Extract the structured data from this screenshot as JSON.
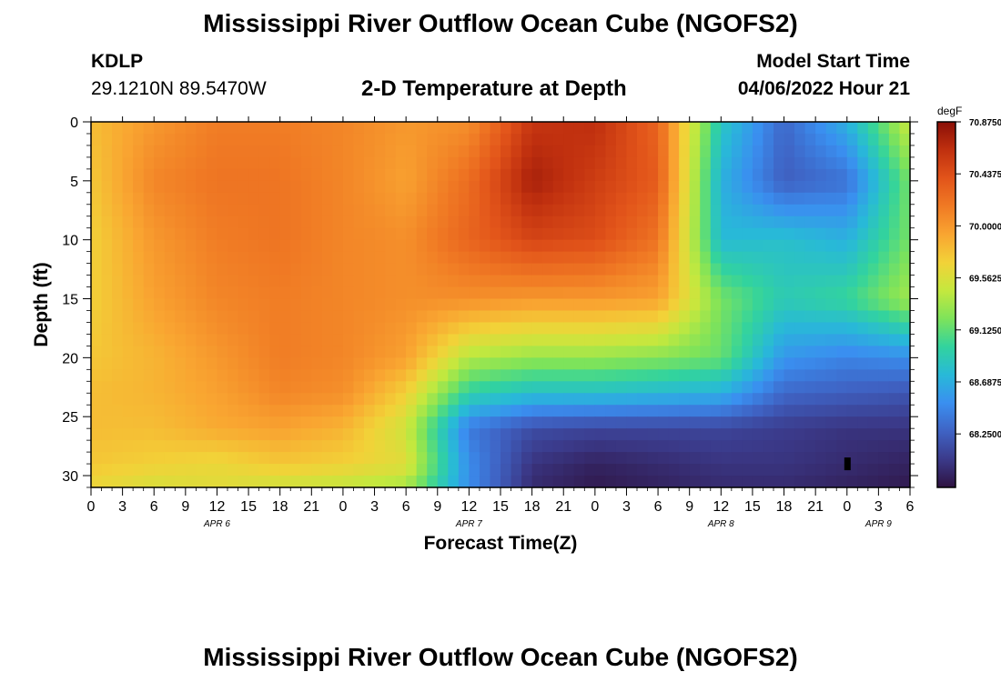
{
  "header": {
    "title": "Mississippi River Outflow Ocean Cube (NGOFS2)",
    "station_id": "KDLP",
    "station_coords": "29.1210N  89.5470W",
    "subtitle": "2-D Temperature at Depth",
    "model_start_label": "Model Start Time",
    "model_start_value": "04/06/2022 Hour 21"
  },
  "footer": {
    "title": "Mississippi River Outflow Ocean Cube (NGOFS2)"
  },
  "colors": {
    "colormap": [
      "#2e1240",
      "#3b3a8a",
      "#3f63c4",
      "#3a8ff0",
      "#28b9d8",
      "#32d39e",
      "#7ee35a",
      "#c4e83e",
      "#f2d238",
      "#f9a531",
      "#f07a24",
      "#e2541a",
      "#c0300f",
      "#8a0f07"
    ]
  },
  "chart_data": {
    "type": "heatmap",
    "xlabel": "Forecast Time(Z)",
    "ylabel": "Depth (ft)",
    "x_ticks": [
      "0",
      "3",
      "6",
      "9",
      "12",
      "15",
      "18",
      "21",
      "0",
      "3",
      "6",
      "9",
      "12",
      "15",
      "18",
      "21",
      "0",
      "3",
      "6",
      "9",
      "12",
      "15",
      "18",
      "21",
      "0",
      "3",
      "6"
    ],
    "date_labels": [
      {
        "label": "APR 6",
        "at_tick": 4
      },
      {
        "label": "APR 7",
        "at_tick": 12
      },
      {
        "label": "APR 8",
        "at_tick": 20
      },
      {
        "label": "APR 9",
        "at_tick": 25
      }
    ],
    "y_ticks": [
      0,
      5,
      10,
      15,
      20,
      25,
      30
    ],
    "ylim": [
      0,
      31
    ],
    "x_range_hours": [
      0,
      78
    ],
    "colorbar": {
      "unit": "degF",
      "tick_labels": [
        "70.8750",
        "70.4375",
        "70.0000",
        "69.5625",
        "69.1250",
        "68.6875",
        "68.2500"
      ],
      "range": [
        67.8,
        70.875
      ]
    },
    "value_model": {
      "layers": [
        {
          "depth": 0,
          "hours": [
            0,
            6,
            12,
            18,
            24,
            30,
            36,
            42,
            48,
            54,
            60,
            66,
            72,
            78
          ],
          "values": [
            69.8,
            70.0,
            70.15,
            70.15,
            70.1,
            70.0,
            70.05,
            70.6,
            70.65,
            70.3,
            68.85,
            68.3,
            68.7,
            69.5
          ]
        },
        {
          "depth": 5,
          "hours": [
            0,
            6,
            12,
            18,
            24,
            30,
            36,
            42,
            48,
            54,
            60,
            66,
            72,
            78
          ],
          "values": [
            69.75,
            70.1,
            70.2,
            70.2,
            70.1,
            69.95,
            70.25,
            70.75,
            70.55,
            70.35,
            68.7,
            68.25,
            68.35,
            69.2
          ]
        },
        {
          "depth": 10,
          "hours": [
            0,
            6,
            12,
            18,
            24,
            30,
            36,
            42,
            48,
            54,
            60,
            66,
            72,
            78
          ],
          "values": [
            69.7,
            70.0,
            70.15,
            70.2,
            70.1,
            70.05,
            70.3,
            70.5,
            70.45,
            70.2,
            68.75,
            68.8,
            68.7,
            69.2
          ]
        },
        {
          "depth": 15,
          "hours": [
            0,
            6,
            12,
            18,
            24,
            30,
            36,
            42,
            48,
            54,
            60,
            66,
            72,
            78
          ],
          "values": [
            69.7,
            69.95,
            70.1,
            70.15,
            70.1,
            70.05,
            70.05,
            70.0,
            70.0,
            69.95,
            69.2,
            68.9,
            69.0,
            69.35
          ]
        },
        {
          "depth": 20,
          "hours": [
            0,
            6,
            12,
            18,
            24,
            30,
            36,
            42,
            48,
            54,
            60,
            66,
            72,
            78
          ],
          "values": [
            69.75,
            69.85,
            70.0,
            70.15,
            70.1,
            69.95,
            69.4,
            69.3,
            69.3,
            69.25,
            69.15,
            68.55,
            68.45,
            68.5
          ]
        },
        {
          "depth": 23,
          "hours": [
            0,
            6,
            12,
            18,
            24,
            30,
            36,
            42,
            48,
            54,
            60,
            66,
            72,
            78
          ],
          "values": [
            69.8,
            69.85,
            69.95,
            70.1,
            70.05,
            69.7,
            68.95,
            68.8,
            68.8,
            68.75,
            68.7,
            68.3,
            68.25,
            68.2
          ]
        },
        {
          "depth": 26,
          "hours": [
            0,
            6,
            12,
            18,
            24,
            30,
            36,
            42,
            48,
            54,
            60,
            66,
            72,
            78
          ],
          "values": [
            69.8,
            69.8,
            69.9,
            69.95,
            69.85,
            69.5,
            68.4,
            68.15,
            68.1,
            68.1,
            68.1,
            68.05,
            68.0,
            68.0
          ]
        },
        {
          "depth": 29,
          "hours": [
            0,
            6,
            12,
            18,
            24,
            30,
            36,
            42,
            48,
            54,
            60,
            66,
            72,
            78
          ],
          "values": [
            69.75,
            69.7,
            69.65,
            69.75,
            69.7,
            69.6,
            68.5,
            68.0,
            67.9,
            67.95,
            68.0,
            68.0,
            67.95,
            67.9
          ]
        },
        {
          "depth": 31,
          "hours": [
            0,
            6,
            12,
            18,
            24,
            30,
            36,
            42,
            48,
            54,
            60,
            66,
            72,
            78
          ],
          "values": [
            69.65,
            69.55,
            69.6,
            69.5,
            69.45,
            69.35,
            68.5,
            67.95,
            67.85,
            67.9,
            67.95,
            67.95,
            67.9,
            67.85
          ]
        }
      ]
    },
    "marker": {
      "hour": 72,
      "depth": 29
    }
  }
}
